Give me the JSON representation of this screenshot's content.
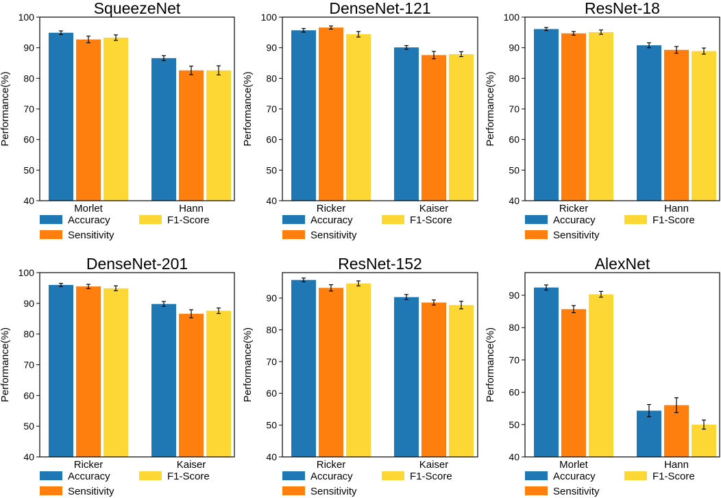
{
  "colors": {
    "accuracy": "#1f77b4",
    "sensitivity": "#ff7f0e",
    "f1": "#fdd835",
    "axis": "#000000",
    "errorbar": "#000000"
  },
  "chart_data": [
    {
      "type": "bar",
      "title": "SqueezeNet",
      "ylabel": "Performance(%)",
      "xlabel": "",
      "ylim": [
        40,
        100
      ],
      "yticks": [
        40,
        50,
        60,
        70,
        80,
        90,
        100
      ],
      "categories": [
        "Morlet",
        "Hann"
      ],
      "series": [
        {
          "name": "Accuracy",
          "values": [
            94.9,
            86.6
          ],
          "errors": [
            0.6,
            0.8
          ]
        },
        {
          "name": "Sensitivity",
          "values": [
            92.7,
            82.6
          ],
          "errors": [
            1.1,
            1.4
          ]
        },
        {
          "name": "F1-Score",
          "values": [
            93.3,
            82.6
          ],
          "errors": [
            0.9,
            1.5
          ]
        }
      ],
      "legend": [
        "Accuracy",
        "F1-Score",
        "Sensitivity"
      ]
    },
    {
      "type": "bar",
      "title": "DenseNet-121",
      "ylabel": "Performance(%)",
      "xlabel": "",
      "ylim": [
        40,
        100
      ],
      "yticks": [
        40,
        50,
        60,
        70,
        80,
        90,
        100
      ],
      "categories": [
        "Ricker",
        "Kaiser"
      ],
      "series": [
        {
          "name": "Accuracy",
          "values": [
            95.7,
            90.1
          ],
          "errors": [
            0.6,
            0.6
          ]
        },
        {
          "name": "Sensitivity",
          "values": [
            96.6,
            87.6
          ],
          "errors": [
            0.5,
            1.2
          ]
        },
        {
          "name": "F1-Score",
          "values": [
            94.4,
            87.9
          ],
          "errors": [
            0.9,
            0.8
          ]
        }
      ],
      "legend": [
        "Accuracy",
        "F1-Score",
        "Sensitivity"
      ]
    },
    {
      "type": "bar",
      "title": "ResNet-18",
      "ylabel": "Performance(%)",
      "xlabel": "",
      "ylim": [
        40,
        100
      ],
      "yticks": [
        40,
        50,
        60,
        70,
        80,
        90,
        100
      ],
      "categories": [
        "Ricker",
        "Hann"
      ],
      "series": [
        {
          "name": "Accuracy",
          "values": [
            96.1,
            90.8
          ],
          "errors": [
            0.5,
            0.8
          ]
        },
        {
          "name": "Sensitivity",
          "values": [
            94.7,
            89.3
          ],
          "errors": [
            0.6,
            1.1
          ]
        },
        {
          "name": "F1-Score",
          "values": [
            95.1,
            88.9
          ],
          "errors": [
            0.7,
            1.0
          ]
        }
      ],
      "legend": [
        "Accuracy",
        "F1-Score",
        "Sensitivity"
      ]
    },
    {
      "type": "bar",
      "title": "DenseNet-201",
      "ylabel": "Performance(%)",
      "xlabel": "",
      "ylim": [
        40,
        100
      ],
      "yticks": [
        40,
        50,
        60,
        70,
        80,
        90,
        100
      ],
      "categories": [
        "Ricker",
        "Kaiser"
      ],
      "series": [
        {
          "name": "Accuracy",
          "values": [
            96.0,
            89.8
          ],
          "errors": [
            0.5,
            0.8
          ]
        },
        {
          "name": "Sensitivity",
          "values": [
            95.5,
            86.6
          ],
          "errors": [
            0.7,
            1.3
          ]
        },
        {
          "name": "F1-Score",
          "values": [
            94.9,
            87.6
          ],
          "errors": [
            0.8,
            0.9
          ]
        }
      ],
      "legend": [
        "Accuracy",
        "F1-Score",
        "Sensitivity"
      ]
    },
    {
      "type": "bar",
      "title": "ResNet-152",
      "ylabel": "Performance(%)",
      "xlabel": "",
      "ylim": [
        40,
        98
      ],
      "yticks": [
        40,
        50,
        60,
        70,
        80,
        90
      ],
      "categories": [
        "Ricker",
        "Kaiser"
      ],
      "series": [
        {
          "name": "Accuracy",
          "values": [
            95.7,
            90.3
          ],
          "errors": [
            0.6,
            0.8
          ]
        },
        {
          "name": "Sensitivity",
          "values": [
            93.2,
            88.6
          ],
          "errors": [
            1.0,
            0.8
          ]
        },
        {
          "name": "F1-Score",
          "values": [
            94.6,
            87.8
          ],
          "errors": [
            0.8,
            1.2
          ]
        }
      ],
      "legend": [
        "Accuracy",
        "F1-Score",
        "Sensitivity"
      ]
    },
    {
      "type": "bar",
      "title": "AlexNet",
      "ylabel": "Performance(%)",
      "xlabel": "",
      "ylim": [
        40,
        97
      ],
      "yticks": [
        40,
        50,
        60,
        70,
        80,
        90
      ],
      "categories": [
        "Morlet",
        "Hann"
      ],
      "series": [
        {
          "name": "Accuracy",
          "values": [
            92.4,
            54.3
          ],
          "errors": [
            0.8,
            1.9
          ]
        },
        {
          "name": "Sensitivity",
          "values": [
            85.7,
            56.0
          ],
          "errors": [
            1.1,
            2.3
          ]
        },
        {
          "name": "F1-Score",
          "values": [
            90.3,
            50.0
          ],
          "errors": [
            0.9,
            1.4
          ]
        }
      ],
      "legend": [
        "Accuracy",
        "F1-Score",
        "Sensitivity"
      ]
    }
  ]
}
